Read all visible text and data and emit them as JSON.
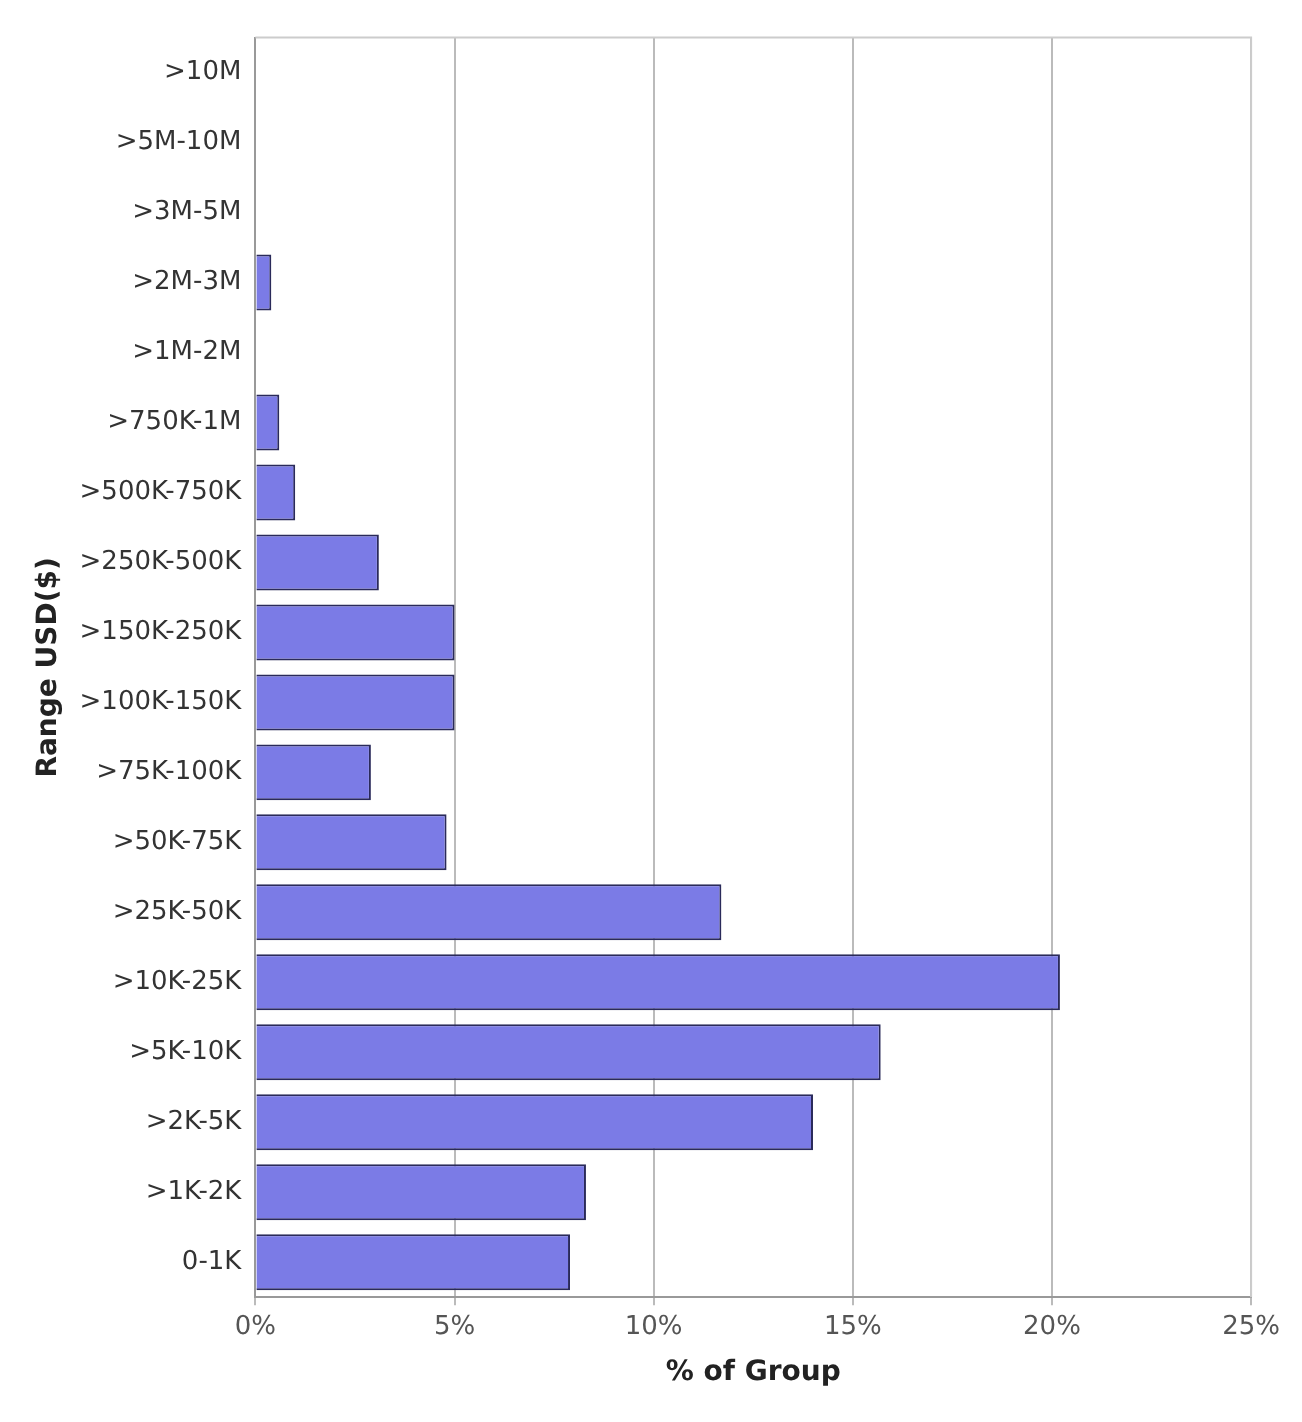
{
  "chart_data": {
    "type": "bar",
    "orientation": "horizontal",
    "xlabel": "% of Group",
    "ylabel": "Range USD($)",
    "categories": [
      ">10M",
      ">5M-10M",
      ">3M-5M",
      ">2M-3M",
      ">1M-2M",
      ">750K-1M",
      ">500K-750K",
      ">250K-500K",
      ">150K-250K",
      ">100K-150K",
      ">75K-100K",
      ">50K-75K",
      ">25K-50K",
      ">10K-25K",
      ">5K-10K",
      ">2K-5K",
      ">1K-2K",
      "0-1K"
    ],
    "values": [
      0,
      0,
      0,
      0.4,
      0,
      0.6,
      1.0,
      3.1,
      5.0,
      5.0,
      2.9,
      4.8,
      11.7,
      20.2,
      15.7,
      14.0,
      8.3,
      7.9
    ],
    "color": "#7b7be6",
    "xlim": [
      0,
      25
    ],
    "xticks": [
      {
        "value": 0,
        "label": "0%"
      },
      {
        "value": 5,
        "label": "5%"
      },
      {
        "value": 10,
        "label": "10%"
      },
      {
        "value": 15,
        "label": "15%"
      },
      {
        "value": 20,
        "label": "20%"
      },
      {
        "value": 25,
        "label": "25%"
      }
    ],
    "grid": "x",
    "legend": false
  }
}
